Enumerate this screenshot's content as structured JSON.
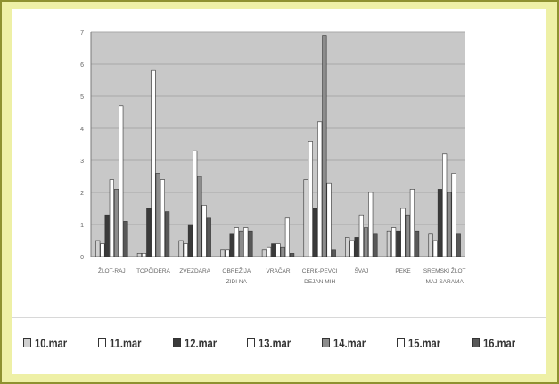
{
  "chart_data": {
    "type": "bar",
    "categories": [
      "ŽLOT-RAJ",
      "TOPČIDERA",
      "ZVEZDARA",
      "OBREŽIJA ZIDI NA",
      "VRAČAR",
      "CERK-PEVCI DEJAN MIH",
      "ŠVAJ",
      "PEKE",
      "SREMSKI ŽLOT MAJ SARAMA"
    ],
    "series": [
      {
        "name": "10.mar",
        "values": [
          0.5,
          0.1,
          0.5,
          0.2,
          0.2,
          2.4,
          0.6,
          0.8,
          0.7
        ]
      },
      {
        "name": "11.mar",
        "values": [
          0.4,
          0.1,
          0.4,
          0.2,
          0.3,
          3.6,
          0.5,
          0.9,
          0.5
        ]
      },
      {
        "name": "12.mar",
        "values": [
          1.3,
          1.5,
          1.0,
          0.7,
          0.4,
          1.5,
          0.6,
          0.8,
          2.1
        ]
      },
      {
        "name": "13.mar",
        "values": [
          2.4,
          5.8,
          3.3,
          0.9,
          0.4,
          4.2,
          1.3,
          1.5,
          3.2
        ]
      },
      {
        "name": "14.mar",
        "values": [
          2.1,
          2.6,
          2.5,
          0.8,
          0.3,
          6.9,
          0.9,
          1.3,
          2.0
        ]
      },
      {
        "name": "15.mar",
        "values": [
          4.7,
          2.4,
          1.6,
          0.9,
          1.2,
          2.3,
          2.0,
          2.1,
          2.6
        ]
      },
      {
        "name": "16.mar",
        "values": [
          1.1,
          1.4,
          1.2,
          0.8,
          0.1,
          0.2,
          0.7,
          0.8,
          0.7
        ]
      }
    ],
    "yticks": [
      "0",
      "1",
      "2",
      "3",
      "4",
      "5",
      "6",
      "7"
    ],
    "ylim": [
      0,
      7
    ],
    "grid": true,
    "legend_position": "bottom",
    "colors": {
      "plot_bg": "#c8c8c8",
      "series": [
        "#d0d0d0",
        "#ffffff",
        "#3a3a3a",
        "#ffffff",
        "#8c8c8c",
        "#ffffff",
        "#585858"
      ]
    }
  },
  "legend": {
    "items": [
      {
        "label": "10.mar",
        "color": "#d0d0d0"
      },
      {
        "label": "11.mar",
        "color": "#ffffff"
      },
      {
        "label": "12.mar",
        "color": "#3a3a3a"
      },
      {
        "label": "13.mar",
        "color": "#ffffff"
      },
      {
        "label": "14.mar",
        "color": "#8c8c8c"
      },
      {
        "label": "15.mar",
        "color": "#ffffff"
      },
      {
        "label": "16.mar",
        "color": "#585858"
      }
    ]
  }
}
